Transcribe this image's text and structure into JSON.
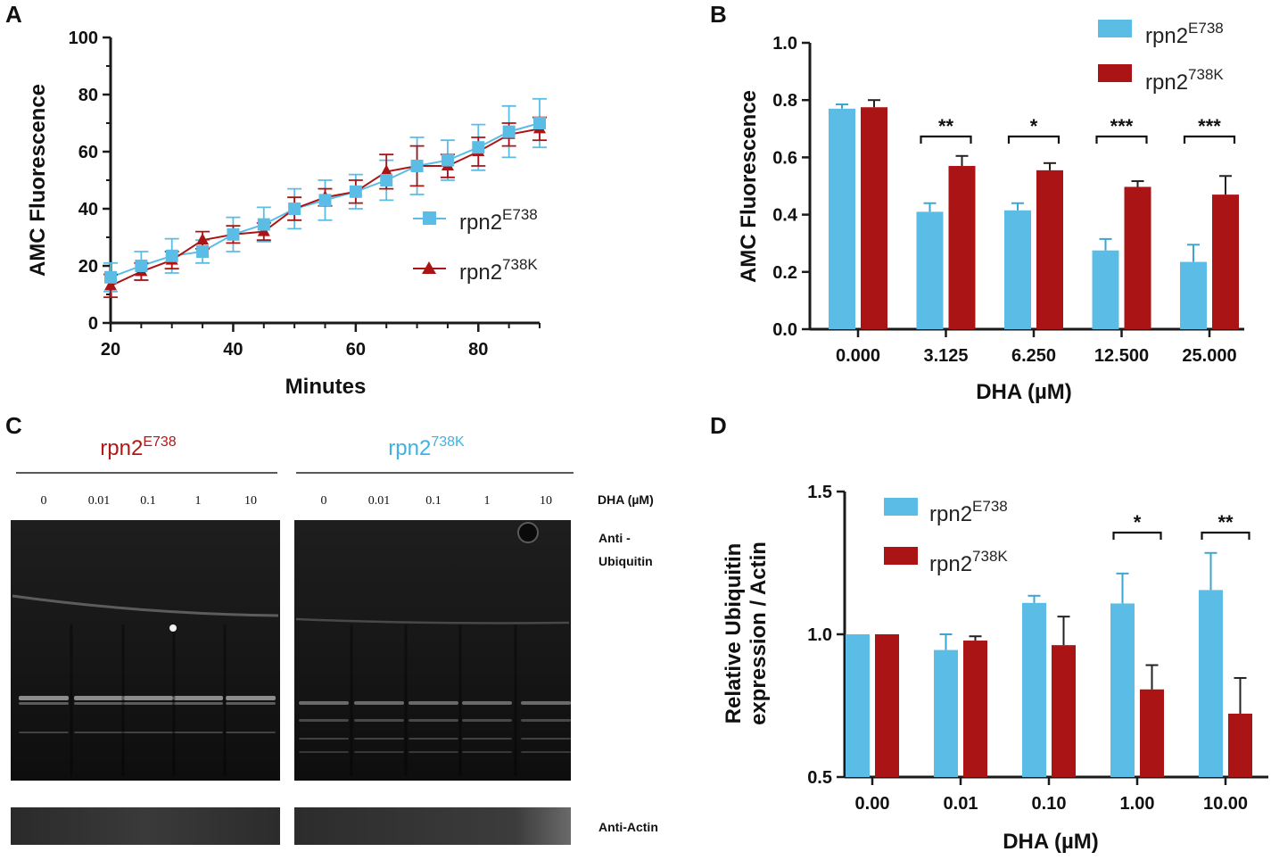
{
  "colors": {
    "e738": "#5bbde5",
    "k738": "#aa1414",
    "axis": "#1a1a1a"
  },
  "panels": {
    "a": "A",
    "b": "B",
    "c": "C",
    "d": "D"
  },
  "chart_data": [
    {
      "id": "A",
      "type": "line",
      "xlabel": "Minutes",
      "ylabel": "AMC Fluorescence",
      "xlim": [
        20,
        90
      ],
      "ylim": [
        0,
        100
      ],
      "xticks": [
        20,
        40,
        60,
        80
      ],
      "yticks": [
        0,
        20,
        40,
        60,
        80,
        100
      ],
      "x": [
        20,
        25,
        30,
        35,
        40,
        45,
        50,
        55,
        60,
        65,
        70,
        75,
        80,
        85,
        90
      ],
      "series": [
        {
          "name": "rpn2",
          "sup": "E738",
          "marker": "square",
          "values": [
            16,
            20,
            23.5,
            25,
            31,
            34.5,
            40,
            43,
            46,
            50,
            55,
            57,
            61.5,
            67,
            70
          ],
          "errors": [
            5,
            5,
            6,
            4,
            6,
            6,
            7,
            7,
            6,
            7,
            10,
            7,
            8,
            9,
            8.5
          ]
        },
        {
          "name": "rpn2",
          "sup": "738K",
          "marker": "triangle",
          "values": [
            13,
            18,
            22,
            29,
            31,
            32,
            40,
            44,
            46,
            53,
            55,
            55,
            60,
            66,
            68
          ],
          "errors": [
            4,
            3,
            3,
            3,
            3,
            3,
            4,
            3,
            4,
            6,
            7,
            4,
            5,
            4,
            4
          ]
        }
      ],
      "legend_position": "right-middle"
    },
    {
      "id": "B",
      "type": "bar",
      "xlabel": "DHA (µM)",
      "ylabel": "AMC Fluorescence",
      "ylim": [
        0,
        1.0
      ],
      "yticks": [
        "0.0",
        "0.2",
        "0.4",
        "0.6",
        "0.8",
        "1.0"
      ],
      "categories": [
        "0.000",
        "3.125",
        "6.250",
        "12.500",
        "25.000"
      ],
      "series": [
        {
          "name": "rpn2",
          "sup": "E738",
          "values": [
            0.77,
            0.41,
            0.415,
            0.275,
            0.235
          ],
          "errors": [
            0.015,
            0.03,
            0.025,
            0.04,
            0.06
          ]
        },
        {
          "name": "rpn2",
          "sup": "738K",
          "values": [
            0.775,
            0.57,
            0.555,
            0.497,
            0.47
          ],
          "errors": [
            0.025,
            0.035,
            0.025,
            0.02,
            0.065
          ]
        }
      ],
      "significance": [
        "",
        "**",
        "*",
        "***",
        "***"
      ],
      "legend_position": "top-right"
    },
    {
      "id": "D",
      "type": "bar",
      "xlabel": "DHA (µM)",
      "ylabel_line1": "Relative Ubiquitin",
      "ylabel_line2": "expression / Actin",
      "ylim": [
        0.5,
        1.5
      ],
      "yticks": [
        "0.5",
        "1.0",
        "1.5"
      ],
      "categories": [
        "0.00",
        "0.01",
        "0.10",
        "1.00",
        "10.00"
      ],
      "series": [
        {
          "name": "rpn2",
          "sup": "E738",
          "values": [
            1.0,
            0.945,
            1.11,
            1.108,
            1.155
          ],
          "errors": [
            0,
            0.055,
            0.025,
            0.105,
            0.13
          ]
        },
        {
          "name": "rpn2",
          "sup": "738K",
          "values": [
            1.0,
            0.978,
            0.962,
            0.807,
            0.722
          ],
          "errors": [
            0,
            0.015,
            0.1,
            0.085,
            0.125
          ]
        }
      ],
      "significance": [
        "",
        "",
        "",
        "*",
        "**"
      ],
      "legend_position": "top-left"
    }
  ],
  "blot": {
    "group_left": {
      "name": "rpn2",
      "sup": "E738"
    },
    "group_right": {
      "name": "rpn2",
      "sup": "738K"
    },
    "lanes": [
      "0",
      "0.01",
      "0.1",
      "1",
      "10"
    ],
    "dha_label": "DHA (µM)",
    "ubiquitin_label_1": "Anti -",
    "ubiquitin_label_2": "Ubiquitin",
    "actin_label": "Anti-Actin"
  }
}
